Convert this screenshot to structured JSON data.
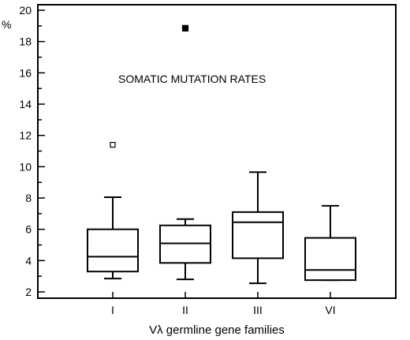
{
  "chart_data": {
    "type": "box",
    "y_unit_label": "%",
    "xlabel": "Vλ germline gene families",
    "ylabel": "",
    "annotation": "SOMATIC MUTATION RATES",
    "ylim": [
      2,
      20
    ],
    "y_major_ticks": [
      2,
      4,
      6,
      8,
      10,
      12,
      14,
      16,
      18,
      20
    ],
    "y_minor_step": 1,
    "categories": [
      "I",
      "II",
      "III",
      "VI"
    ],
    "boxes": [
      {
        "category": "I",
        "whisker_low": 2.85,
        "q1": 3.3,
        "median": 4.25,
        "q3": 6.0,
        "whisker_high": 8.05,
        "outliers": [
          {
            "value": 11.4,
            "style": "open-square"
          }
        ]
      },
      {
        "category": "II",
        "whisker_low": 2.8,
        "q1": 3.85,
        "median": 5.1,
        "q3": 6.25,
        "whisker_high": 6.65,
        "outliers": [
          {
            "value": 18.85,
            "style": "filled-square"
          }
        ]
      },
      {
        "category": "III",
        "whisker_low": 2.55,
        "q1": 4.15,
        "median": 6.45,
        "q3": 7.1,
        "whisker_high": 9.65,
        "outliers": []
      },
      {
        "category": "VI",
        "whisker_low": 2.75,
        "q1": 2.75,
        "median": 3.4,
        "q3": 5.45,
        "whisker_high": 7.5,
        "outliers": []
      }
    ],
    "grid": false,
    "legend": "none"
  }
}
